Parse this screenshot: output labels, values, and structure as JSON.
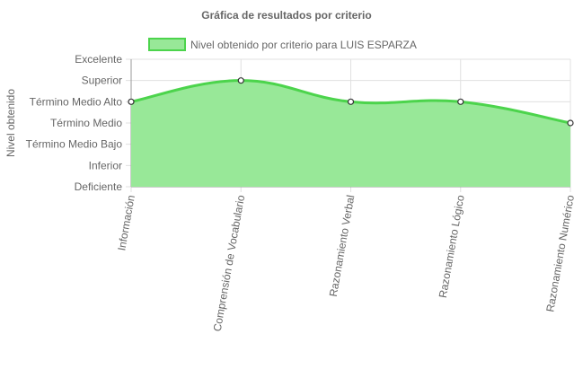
{
  "chart_data": {
    "type": "area",
    "title": "Gráfica de resultados por criterio",
    "ylabel": "Nivel obtenido",
    "xlabel": "",
    "y_levels": [
      "Deficiente",
      "Inferior",
      "Término Medio Bajo",
      "Término Medio",
      "Término Medio Alto",
      "Superior",
      "Excelente"
    ],
    "ylim": [
      0,
      6
    ],
    "categories": [
      "Información",
      "Comprensión de Vocabulario",
      "Razonamiento Verbal",
      "Razonamiento Lógico",
      "Razonamiento Numérico"
    ],
    "series": [
      {
        "name": "Nivel obtenido por criterio para LUIS ESPARZA",
        "values": [
          4,
          5,
          4,
          4,
          3
        ]
      }
    ],
    "grid": true,
    "legend_position": "top",
    "colors": {
      "fill": "#98e898",
      "line": "#4cd44c",
      "grid": "#e0e0e0",
      "axis": "#999999",
      "text": "#666666"
    }
  }
}
